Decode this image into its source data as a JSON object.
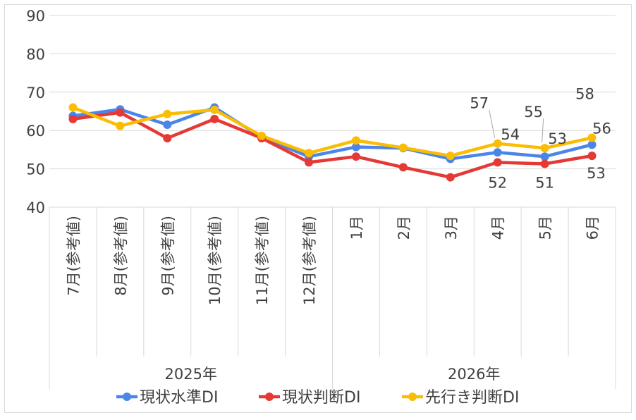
{
  "chart_data": {
    "type": "line",
    "categories": [
      "7月(参考値)",
      "8月(参考値)",
      "9月(参考値)",
      "10月(参考値)",
      "11月(参考値)",
      "12月(参考値)",
      "1月",
      "2月",
      "3月",
      "4月",
      "5月",
      "6月"
    ],
    "year_groups": [
      {
        "label": "2025年",
        "count": 6
      },
      {
        "label": "2026年",
        "count": 6
      }
    ],
    "series": [
      {
        "name": "現状水準DI",
        "color": "#4a86e8",
        "values": [
          63.8,
          65.5,
          61.5,
          66.0,
          58.2,
          53.2,
          55.7,
          55.4,
          52.6,
          54.3,
          53.2,
          56.3
        ]
      },
      {
        "name": "現状判断DI",
        "color": "#e53935",
        "values": [
          63.0,
          64.7,
          58.0,
          63.0,
          58.0,
          51.7,
          53.2,
          50.4,
          47.8,
          51.7,
          51.3,
          53.4
        ]
      },
      {
        "name": "先行き判断DI",
        "color": "#fbbc04",
        "values": [
          66.0,
          61.2,
          64.3,
          65.4,
          58.6,
          54.1,
          57.4,
          55.5,
          53.4,
          56.6,
          55.4,
          58.1
        ]
      }
    ],
    "data_labels": [
      {
        "series": 2,
        "index": 9,
        "text": "57"
      },
      {
        "series": 0,
        "index": 9,
        "text": "54"
      },
      {
        "series": 1,
        "index": 9,
        "text": "52"
      },
      {
        "series": 2,
        "index": 10,
        "text": "55"
      },
      {
        "series": 0,
        "index": 10,
        "text": "53"
      },
      {
        "series": 1,
        "index": 10,
        "text": "51"
      },
      {
        "series": 2,
        "index": 11,
        "text": "58"
      },
      {
        "series": 0,
        "index": 11,
        "text": "56"
      },
      {
        "series": 1,
        "index": 11,
        "text": "53"
      }
    ],
    "yticks": [
      "40",
      "50",
      "60",
      "70",
      "80",
      "90"
    ],
    "ylim": [
      40,
      90
    ],
    "grid": true,
    "legend_position": "bottom"
  }
}
